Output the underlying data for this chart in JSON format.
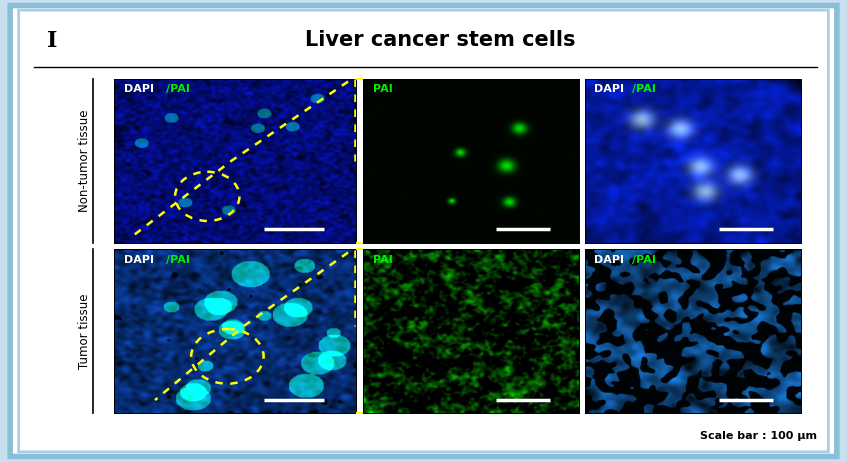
{
  "title": "Liver cancer stem cells",
  "panel_label": "I",
  "scale_bar_text": "Scale bar : 100 μm",
  "row_labels": [
    "Non-tumor tissue",
    "Tumor tissue"
  ],
  "background_color": "white",
  "outer_border_color": "#7ab8d4",
  "inner_border_color": "#b0d4e8",
  "title_fontsize": 15,
  "panel_label_fontsize": 16,
  "row_label_fontsize": 8.5,
  "scale_bar_fontsize": 8,
  "img_label_fontsize": 7.5
}
